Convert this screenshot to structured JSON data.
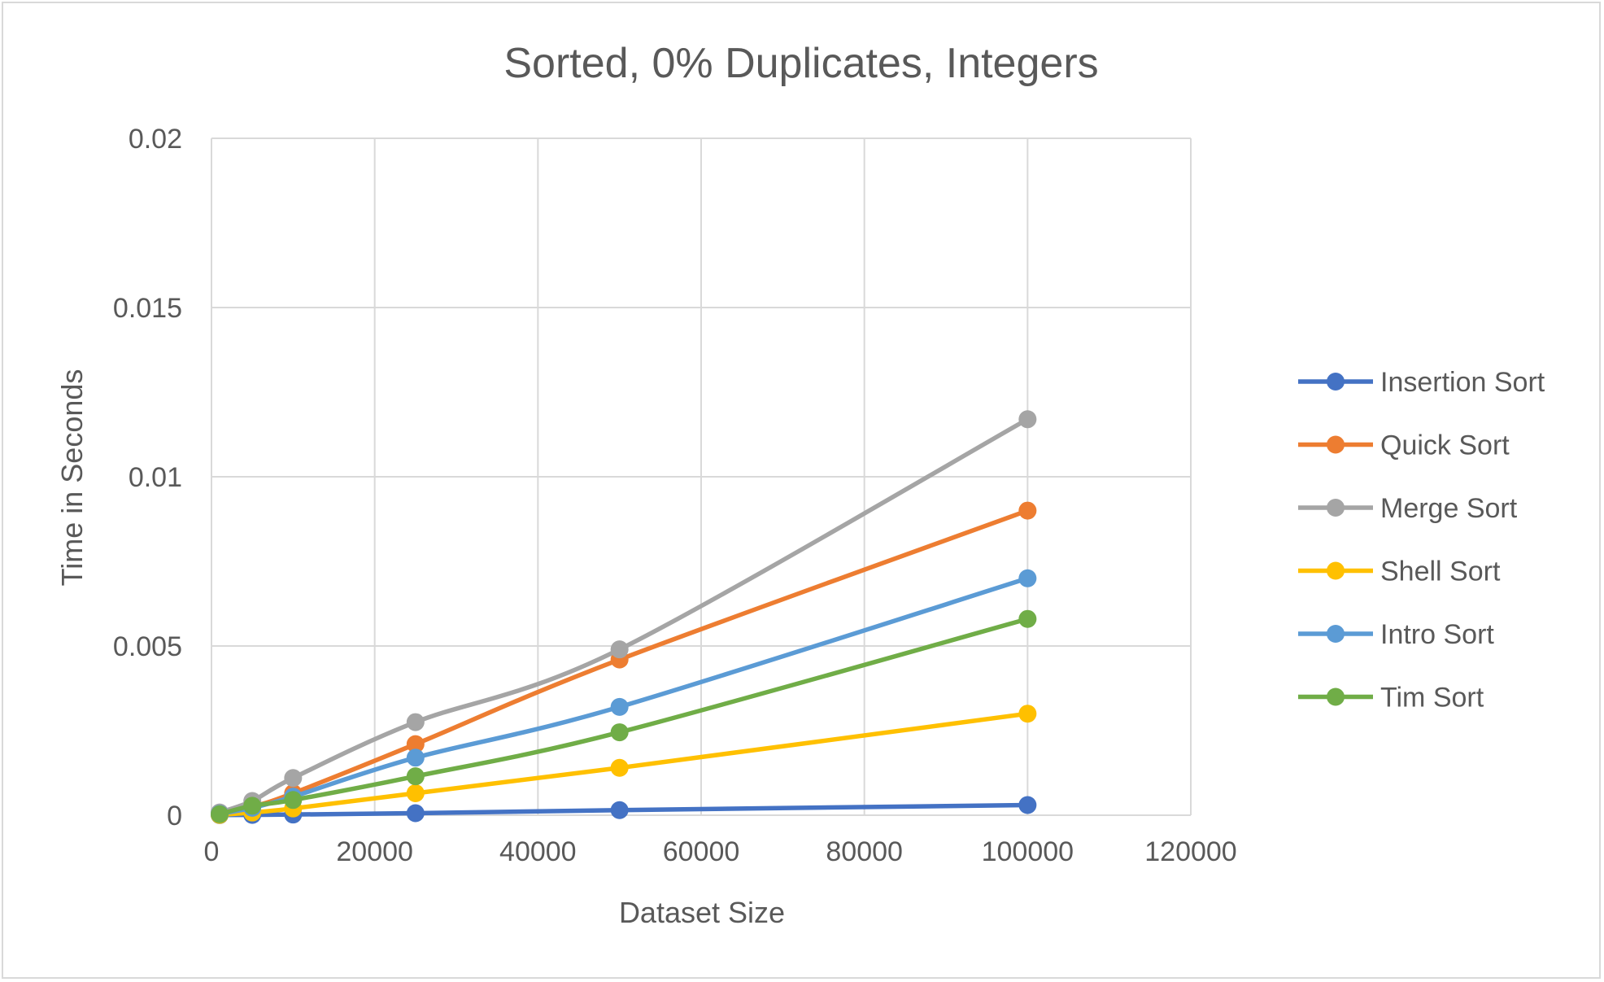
{
  "chart_data": {
    "type": "line",
    "title": "Sorted, 0% Duplicates, Integers",
    "xlabel": "Dataset Size",
    "ylabel": "Time in Seconds",
    "xlim": [
      0,
      120000
    ],
    "ylim": [
      0,
      0.02
    ],
    "x_ticks": [
      "0",
      "20000",
      "40000",
      "60000",
      "80000",
      "100000",
      "120000"
    ],
    "y_ticks": [
      "0",
      "0.005",
      "0.01",
      "0.015",
      "0.02"
    ],
    "grid": true,
    "legend_position": "right",
    "x": [
      1000,
      5000,
      10000,
      25000,
      50000,
      100000
    ],
    "series": [
      {
        "name": "Insertion Sort",
        "color": "#4472C4",
        "values": [
          5e-06,
          1e-05,
          2e-05,
          6e-05,
          0.00015,
          0.0003
        ]
      },
      {
        "name": "Quick Sort",
        "color": "#ED7D31",
        "values": [
          5e-05,
          0.00025,
          0.00065,
          0.0021,
          0.0046,
          0.009
        ]
      },
      {
        "name": "Merge Sort",
        "color": "#A5A5A5",
        "values": [
          8e-05,
          0.00042,
          0.0011,
          0.00275,
          0.0049,
          0.0117
        ]
      },
      {
        "name": "Shell Sort",
        "color": "#FFC000",
        "values": [
          1e-05,
          8e-05,
          0.0002,
          0.00065,
          0.0014,
          0.003
        ]
      },
      {
        "name": "Intro Sort",
        "color": "#5B9BD5",
        "values": [
          4e-05,
          0.00022,
          0.00055,
          0.0017,
          0.0032,
          0.007
        ]
      },
      {
        "name": "Tim Sort",
        "color": "#70AD47",
        "values": [
          3e-05,
          0.00028,
          0.00045,
          0.00115,
          0.00245,
          0.0058
        ]
      }
    ]
  }
}
